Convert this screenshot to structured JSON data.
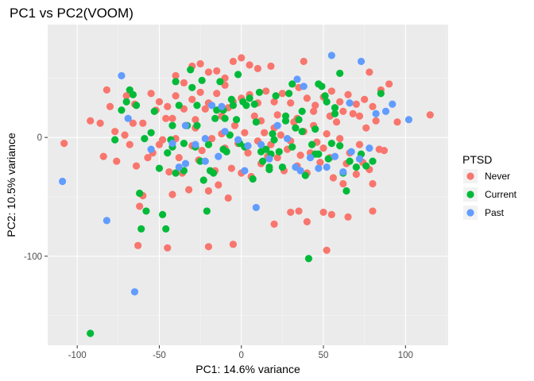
{
  "chart_data": {
    "type": "scatter",
    "title": "PC1 vs PC2(VOOM)",
    "xlabel": "PC1: 14.6% variance",
    "ylabel": "PC2: 10.5% variance",
    "xlim": [
      -118,
      126
    ],
    "ylim": [
      -175,
      95
    ],
    "xticks": [
      -100,
      -50,
      0,
      50,
      100
    ],
    "xtick_labels": [
      "-100",
      "-50",
      "0",
      "50",
      "100"
    ],
    "yticks": [
      -100,
      0
    ],
    "ytick_labels": [
      "-100",
      "0"
    ],
    "grid": true,
    "legend_position": "right",
    "legend": {
      "title": "PTSD",
      "entries": [
        {
          "label": "Never",
          "color": "#F8766D"
        },
        {
          "label": "Current",
          "color": "#00BA38"
        },
        {
          "label": "Past",
          "color": "#619CFF"
        }
      ]
    },
    "series": [
      {
        "name": "Never",
        "color": "#F8766D",
        "points": [
          [
            -108,
            -5
          ],
          [
            -92,
            14
          ],
          [
            -86,
            12
          ],
          [
            -84,
            -16
          ],
          [
            -77,
            5
          ],
          [
            -76,
            -20
          ],
          [
            -71,
            2
          ],
          [
            -68,
            -6
          ],
          [
            -66,
            12
          ],
          [
            -64,
            -24
          ],
          [
            -62,
            -58
          ],
          [
            -60,
            -49
          ],
          [
            -57,
            -17
          ],
          [
            -54,
            -13
          ],
          [
            -52,
            23
          ],
          [
            -50,
            -6
          ],
          [
            -48,
            -2
          ],
          [
            -46,
            16
          ],
          [
            -44,
            -29
          ],
          [
            -42,
            -48
          ],
          [
            -40,
            -1
          ],
          [
            -38,
            -17
          ],
          [
            -36,
            -30
          ],
          [
            -34,
            10
          ],
          [
            -32,
            -44
          ],
          [
            -30,
            -7
          ],
          [
            -28,
            8
          ],
          [
            -26,
            -19
          ],
          [
            -24,
            -11
          ],
          [
            -22,
            24
          ],
          [
            -20,
            -45
          ],
          [
            -18,
            -1
          ],
          [
            -16,
            -28
          ],
          [
            -14,
            -40
          ],
          [
            -12,
            18
          ],
          [
            -10,
            -9
          ],
          [
            -8,
            -51
          ],
          [
            -6,
            -26
          ],
          [
            -4,
            10
          ],
          [
            -2,
            -5
          ],
          [
            0,
            -30
          ],
          [
            2,
            4
          ],
          [
            4,
            -13
          ],
          [
            6,
            -33
          ],
          [
            8,
            18
          ],
          [
            10,
            -3
          ],
          [
            12,
            -22
          ],
          [
            14,
            4
          ],
          [
            16,
            -16
          ],
          [
            18,
            -6
          ],
          [
            20,
            8
          ],
          [
            22,
            -17
          ],
          [
            24,
            2
          ],
          [
            26,
            -28
          ],
          [
            28,
            -10
          ],
          [
            30,
            -3
          ],
          [
            32,
            13
          ],
          [
            34,
            -24
          ],
          [
            36,
            -15
          ],
          [
            38,
            5
          ],
          [
            40,
            -30
          ],
          [
            42,
            -13
          ],
          [
            44,
            10
          ],
          [
            46,
            -4
          ],
          [
            48,
            -21
          ],
          [
            50,
            -9
          ],
          [
            52,
            3
          ],
          [
            54,
            -17
          ],
          [
            56,
            -34
          ],
          [
            58,
            13
          ],
          [
            60,
            -1
          ],
          [
            62,
            -39
          ],
          [
            64,
            -22
          ],
          [
            66,
            -13
          ],
          [
            68,
            20
          ],
          [
            70,
            -31
          ],
          [
            72,
            -6
          ],
          [
            74,
            -21
          ],
          [
            76,
            8
          ],
          [
            78,
            -27
          ],
          [
            80,
            -39
          ],
          [
            84,
            -10
          ],
          [
            87,
            -11
          ],
          [
            95,
            13
          ],
          [
            115,
            19
          ],
          [
            -63,
            -91
          ],
          [
            -45,
            -93
          ],
          [
            -20,
            -92
          ],
          [
            -5,
            -90
          ],
          [
            20,
            -73
          ],
          [
            30,
            -63
          ],
          [
            35,
            -62
          ],
          [
            40,
            -71
          ],
          [
            50,
            -63
          ],
          [
            55,
            -65
          ],
          [
            65,
            -67
          ],
          [
            80,
            -62
          ],
          [
            52,
            -95
          ],
          [
            -40,
            52
          ],
          [
            -35,
            46
          ],
          [
            -30,
            60
          ],
          [
            -25,
            62
          ],
          [
            -20,
            55
          ],
          [
            -15,
            56
          ],
          [
            -10,
            50
          ],
          [
            -5,
            64
          ],
          [
            0,
            67
          ],
          [
            5,
            61
          ],
          [
            10,
            58
          ],
          [
            -82,
            40
          ],
          [
            -70,
            35
          ],
          [
            -65,
            28
          ],
          [
            -55,
            37
          ],
          [
            -50,
            30
          ],
          [
            -45,
            26
          ],
          [
            -40,
            35
          ],
          [
            -35,
            24
          ],
          [
            -30,
            32
          ],
          [
            -25,
            38
          ],
          [
            -20,
            29
          ],
          [
            -15,
            37
          ],
          [
            -10,
            44
          ],
          [
            -5,
            30
          ],
          [
            0,
            33
          ],
          [
            5,
            36
          ],
          [
            10,
            29
          ],
          [
            15,
            39
          ],
          [
            20,
            30
          ],
          [
            25,
            37
          ],
          [
            30,
            29
          ],
          [
            35,
            42
          ],
          [
            40,
            33
          ],
          [
            45,
            27
          ],
          [
            50,
            34
          ],
          [
            55,
            39
          ],
          [
            60,
            30
          ],
          [
            65,
            36
          ],
          [
            70,
            28
          ],
          [
            75,
            32
          ],
          [
            80,
            26
          ],
          [
            85,
            40
          ],
          [
            90,
            45
          ],
          [
            78,
            55
          ],
          [
            18,
            60
          ],
          [
            38,
            64
          ],
          [
            -80,
            26
          ],
          [
            -60,
            12
          ],
          [
            -42,
            16
          ],
          [
            -28,
            15
          ],
          [
            -12,
            3
          ],
          [
            -8,
            25
          ],
          [
            12,
            14
          ],
          [
            22,
            19
          ],
          [
            34,
            16
          ],
          [
            44,
            22
          ],
          [
            54,
            18
          ],
          [
            62,
            22
          ],
          [
            72,
            18
          ],
          [
            82,
            14
          ]
        ]
      },
      {
        "name": "Current",
        "color": "#00BA38",
        "points": [
          [
            -92,
            -165
          ],
          [
            -77,
            -2
          ],
          [
            -73,
            23
          ],
          [
            -70,
            30
          ],
          [
            -68,
            40
          ],
          [
            -66,
            36
          ],
          [
            -64,
            27
          ],
          [
            -62,
            -47
          ],
          [
            -61,
            -77
          ],
          [
            -59,
            -1
          ],
          [
            -55,
            4
          ],
          [
            -50,
            -26
          ],
          [
            -48,
            -65
          ],
          [
            -46,
            -77
          ],
          [
            -45,
            -13
          ],
          [
            -43,
            -2
          ],
          [
            -42,
            10
          ],
          [
            -40,
            47
          ],
          [
            -38,
            27
          ],
          [
            -35,
            -28
          ],
          [
            -33,
            10
          ],
          [
            -30,
            42
          ],
          [
            -28,
            -8
          ],
          [
            -27,
            27
          ],
          [
            -25,
            -20
          ],
          [
            -23,
            -36
          ],
          [
            -21,
            -62
          ],
          [
            -19,
            -28
          ],
          [
            -17,
            -30
          ],
          [
            -15,
            23
          ],
          [
            -13,
            47
          ],
          [
            -11,
            23
          ],
          [
            -9,
            -12
          ],
          [
            -7,
            2
          ],
          [
            -5,
            27
          ],
          [
            -3,
            15
          ],
          [
            -1,
            -5
          ],
          [
            1,
            30
          ],
          [
            3,
            27
          ],
          [
            5,
            33
          ],
          [
            7,
            -35
          ],
          [
            9,
            13
          ],
          [
            11,
            38
          ],
          [
            13,
            -20
          ],
          [
            15,
            -10
          ],
          [
            17,
            -27
          ],
          [
            19,
            3
          ],
          [
            21,
            35
          ],
          [
            23,
            -12
          ],
          [
            25,
            -25
          ],
          [
            27,
            18
          ],
          [
            29,
            37
          ],
          [
            31,
            -8
          ],
          [
            33,
            8
          ],
          [
            35,
            15
          ],
          [
            37,
            22
          ],
          [
            39,
            -32
          ],
          [
            41,
            -102
          ],
          [
            43,
            -6
          ],
          [
            45,
            7
          ],
          [
            47,
            45
          ],
          [
            49,
            43
          ],
          [
            51,
            35
          ],
          [
            53,
            -18
          ],
          [
            55,
            -5
          ],
          [
            57,
            20
          ],
          [
            60,
            -7
          ],
          [
            62,
            -30
          ],
          [
            64,
            -45
          ],
          [
            66,
            -20
          ],
          [
            70,
            -25
          ],
          [
            73,
            -14
          ],
          [
            76,
            -24
          ],
          [
            80,
            -20
          ],
          [
            85,
            37
          ],
          [
            -11,
            -10
          ],
          [
            -31,
            57
          ],
          [
            -2,
            53
          ],
          [
            -24,
            48
          ],
          [
            -27,
            10
          ],
          [
            -16,
            16
          ],
          [
            8,
            28
          ],
          [
            18,
            -14
          ],
          [
            27,
            14
          ],
          [
            37,
            5
          ],
          [
            47,
            -14
          ],
          [
            57,
            25
          ],
          [
            -42,
            -8
          ],
          [
            -53,
            22
          ],
          [
            -40,
            -30
          ],
          [
            -35,
            -5
          ],
          [
            -58,
            -62
          ],
          [
            20,
            -2
          ],
          [
            31,
            45
          ],
          [
            60,
            54
          ],
          [
            45,
            -14
          ],
          [
            17,
            -25
          ],
          [
            2,
            -8
          ],
          [
            -10,
            16
          ],
          [
            -20,
            -6
          ],
          [
            12,
            -12
          ],
          [
            52,
            30
          ],
          [
            -6,
            32
          ]
        ]
      },
      {
        "name": "Past",
        "color": "#619CFF",
        "points": [
          [
            -109,
            -37
          ],
          [
            -82,
            -70
          ],
          [
            -73,
            52
          ],
          [
            -69,
            16
          ],
          [
            -65,
            -130
          ],
          [
            -55,
            -10
          ],
          [
            -42,
            -5
          ],
          [
            -38,
            -25
          ],
          [
            -34,
            10
          ],
          [
            -28,
            -6
          ],
          [
            -22,
            -20
          ],
          [
            -18,
            27
          ],
          [
            -14,
            -16
          ],
          [
            -10,
            5
          ],
          [
            -2,
            -2
          ],
          [
            4,
            -7
          ],
          [
            9,
            -59
          ],
          [
            12,
            -6
          ],
          [
            17,
            -18
          ],
          [
            22,
            10
          ],
          [
            28,
            -1
          ],
          [
            33,
            -25
          ],
          [
            36,
            -28
          ],
          [
            42,
            -17
          ],
          [
            47,
            -26
          ],
          [
            52,
            -25
          ],
          [
            57,
            -16
          ],
          [
            62,
            -29
          ],
          [
            67,
            -12
          ],
          [
            72,
            -18
          ],
          [
            78,
            -9
          ],
          [
            82,
            20
          ],
          [
            88,
            22
          ],
          [
            92,
            28
          ],
          [
            102,
            15
          ],
          [
            34,
            49
          ],
          [
            38,
            43
          ],
          [
            -34,
            -22
          ],
          [
            2,
            -28
          ],
          [
            66,
            29
          ],
          [
            73,
            64
          ],
          [
            55,
            69
          ],
          [
            -12,
            26
          ],
          [
            -22,
            -1
          ]
        ]
      }
    ]
  }
}
